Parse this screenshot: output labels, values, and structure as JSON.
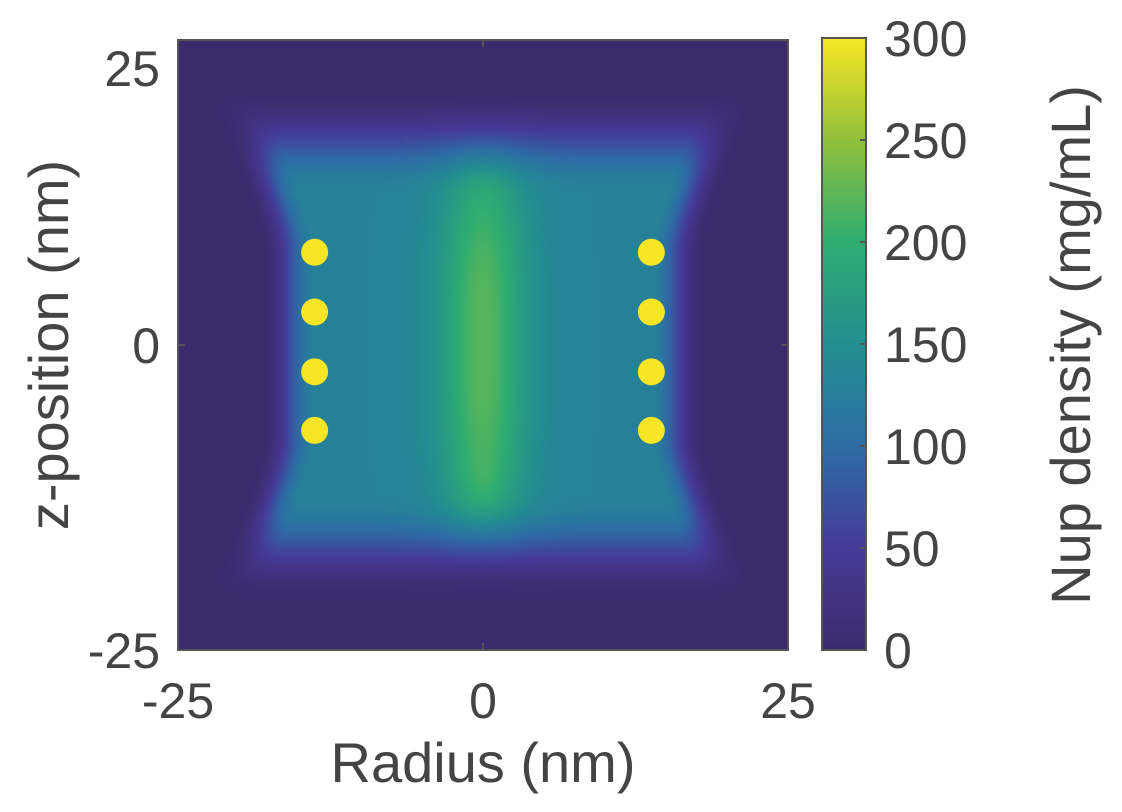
{
  "chart_data": {
    "type": "heatmap",
    "title": "",
    "xlabel": "Radius (nm)",
    "ylabel": "z-position (nm)",
    "colorbar_label": "Nup density (mg/mL)",
    "xlim": [
      -25,
      25
    ],
    "ylim": [
      -25,
      25
    ],
    "xticks": [
      -25,
      0,
      25
    ],
    "yticks": [
      -25,
      0,
      25
    ],
    "xtick_labels": [
      "-25",
      "0",
      "25"
    ],
    "ytick_labels": [
      "-25",
      "0",
      "25"
    ],
    "color_range": [
      0,
      300
    ],
    "colorbar_ticks": [
      0,
      50,
      100,
      150,
      200,
      250,
      300
    ],
    "colorbar_tick_labels": [
      "0",
      "50",
      "100",
      "150",
      "200",
      "250",
      "300"
    ],
    "colormap": "parula",
    "grid": false,
    "background_density": 0,
    "central_channel": {
      "x_range": [
        -15,
        15
      ],
      "z_range": [
        -17,
        17
      ],
      "typical_density": 130,
      "peak_density": 220
    },
    "anchor_points": [
      {
        "x": -13.8,
        "y": 7.6,
        "value": 300
      },
      {
        "x": -13.8,
        "y": 2.7,
        "value": 300
      },
      {
        "x": -13.8,
        "y": -2.2,
        "value": 300
      },
      {
        "x": -13.8,
        "y": -7.0,
        "value": 300
      },
      {
        "x": 13.8,
        "y": 7.6,
        "value": 300
      },
      {
        "x": 13.8,
        "y": 2.7,
        "value": 300
      },
      {
        "x": 13.8,
        "y": -2.2,
        "value": 300
      },
      {
        "x": 13.8,
        "y": -7.0,
        "value": 300
      }
    ]
  },
  "colors": {
    "low": "#3e2a6e",
    "mid": "#27858e",
    "high": "#f7e626",
    "axis": "#555555"
  }
}
